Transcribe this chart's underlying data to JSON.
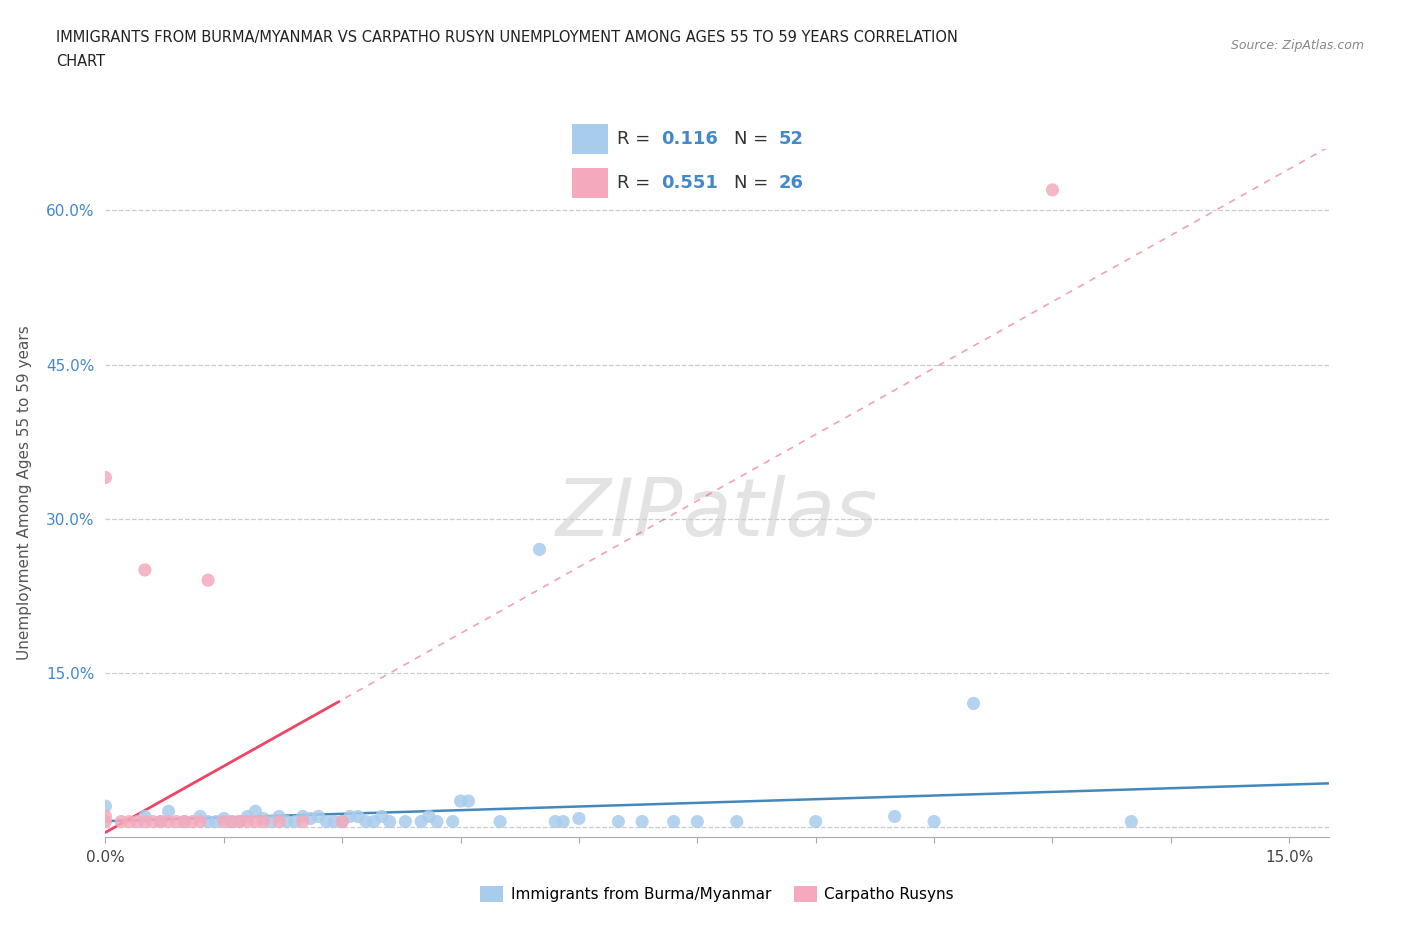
{
  "title_line1": "IMMIGRANTS FROM BURMA/MYANMAR VS CARPATHO RUSYN UNEMPLOYMENT AMONG AGES 55 TO 59 YEARS CORRELATION",
  "title_line2": "CHART",
  "source_text": "Source: ZipAtlas.com",
  "ylabel": "Unemployment Among Ages 55 to 59 years",
  "xlim": [
    0.0,
    0.155
  ],
  "ylim": [
    -0.01,
    0.66
  ],
  "blue_color": "#A8CCEC",
  "pink_color": "#F4AABC",
  "blue_line_color": "#4488BB",
  "pink_line_color": "#EE4466",
  "r_blue": 0.116,
  "n_blue": 52,
  "r_pink": 0.551,
  "n_pink": 26,
  "legend_label_blue": "Immigrants from Burma/Myanmar",
  "legend_label_pink": "Carpatho Rusyns",
  "grid_color": "#CCCCCC",
  "tick_color_blue": "#4488CC",
  "blue_scatter_x": [
    0.0,
    0.005,
    0.007,
    0.008,
    0.01,
    0.012,
    0.013,
    0.014,
    0.015,
    0.016,
    0.017,
    0.018,
    0.019,
    0.02,
    0.021,
    0.022,
    0.023,
    0.024,
    0.025,
    0.026,
    0.027,
    0.028,
    0.029,
    0.03,
    0.031,
    0.032,
    0.033,
    0.034,
    0.035,
    0.036,
    0.038,
    0.04,
    0.041,
    0.042,
    0.044,
    0.045,
    0.046,
    0.05,
    0.055,
    0.057,
    0.058,
    0.06,
    0.065,
    0.068,
    0.072,
    0.075,
    0.08,
    0.09,
    0.1,
    0.105,
    0.11,
    0.13
  ],
  "blue_scatter_y": [
    0.02,
    0.01,
    0.005,
    0.015,
    0.005,
    0.01,
    0.005,
    0.005,
    0.008,
    0.005,
    0.005,
    0.01,
    0.015,
    0.008,
    0.005,
    0.01,
    0.005,
    0.005,
    0.01,
    0.008,
    0.01,
    0.005,
    0.005,
    0.005,
    0.01,
    0.01,
    0.005,
    0.005,
    0.01,
    0.005,
    0.005,
    0.005,
    0.01,
    0.005,
    0.005,
    0.025,
    0.025,
    0.005,
    0.27,
    0.005,
    0.005,
    0.008,
    0.005,
    0.005,
    0.005,
    0.005,
    0.005,
    0.005,
    0.01,
    0.005,
    0.12,
    0.005
  ],
  "pink_scatter_x": [
    0.0,
    0.0,
    0.0,
    0.002,
    0.003,
    0.004,
    0.005,
    0.005,
    0.006,
    0.007,
    0.008,
    0.009,
    0.01,
    0.011,
    0.012,
    0.013,
    0.015,
    0.016,
    0.017,
    0.018,
    0.019,
    0.02,
    0.022,
    0.025,
    0.03,
    0.12
  ],
  "pink_scatter_y": [
    0.005,
    0.01,
    0.34,
    0.005,
    0.005,
    0.005,
    0.005,
    0.25,
    0.005,
    0.005,
    0.005,
    0.005,
    0.005,
    0.005,
    0.005,
    0.24,
    0.005,
    0.005,
    0.005,
    0.005,
    0.005,
    0.005,
    0.005,
    0.005,
    0.005,
    0.62
  ],
  "xtick_minor_positions": [
    0.0,
    0.015,
    0.03,
    0.045,
    0.06,
    0.075,
    0.09,
    0.105,
    0.12,
    0.135,
    0.15
  ],
  "ytick_positions": [
    0.0,
    0.15,
    0.3,
    0.45,
    0.6
  ],
  "ytick_labels": [
    "",
    "15.0%",
    "30.0%",
    "45.0%",
    "60.0%"
  ]
}
